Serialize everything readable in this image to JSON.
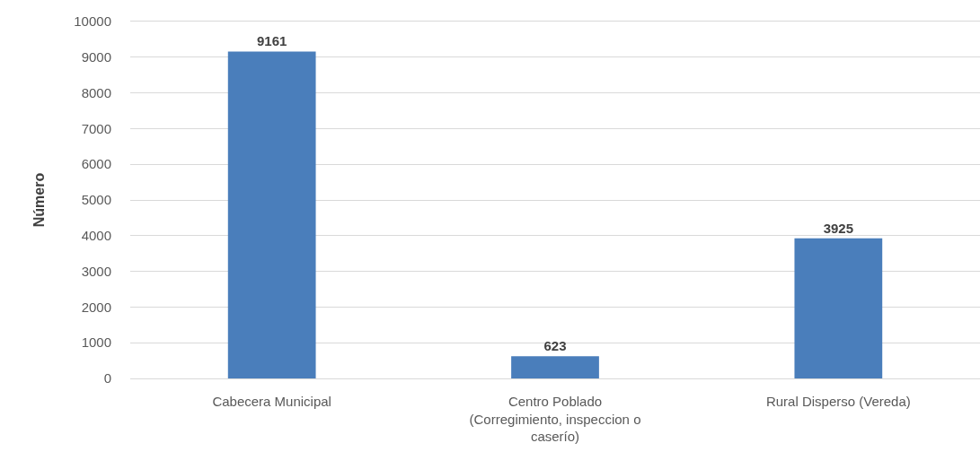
{
  "chart_data": {
    "type": "bar",
    "ylabel": "Número",
    "categories": [
      "Cabecera Municipal",
      "Centro Poblado (Corregimiento, inspeccion o caserío)",
      "Rural Disperso (Vereda)"
    ],
    "values": [
      9161,
      623,
      3925
    ],
    "color": "#4a7ebb",
    "ylim": [
      0,
      10000
    ],
    "yticks": [
      0,
      1000,
      2000,
      3000,
      4000,
      5000,
      6000,
      7000,
      8000,
      9000,
      10000
    ],
    "grid": "y",
    "data_labels": true
  }
}
